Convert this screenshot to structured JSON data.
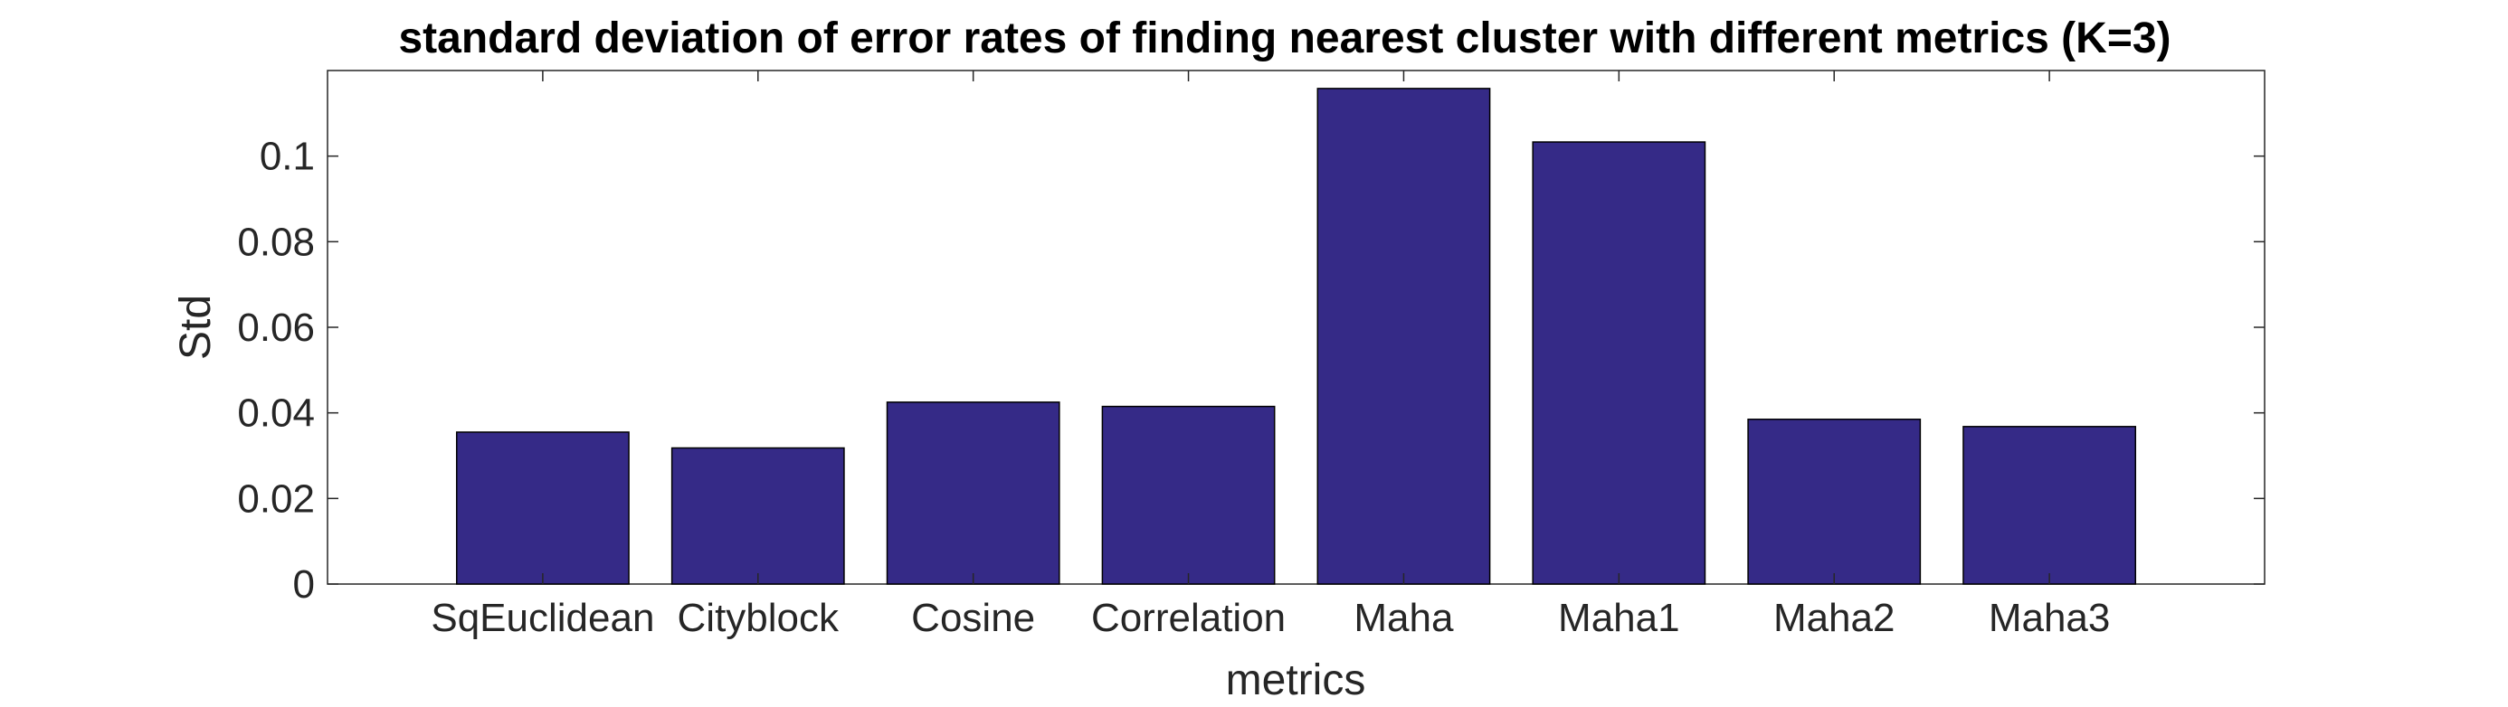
{
  "chart_data": {
    "type": "bar",
    "title": "standard deviation of error rates of finding nearest cluster with different metrics (K=3)",
    "xlabel": "metrics",
    "ylabel": "Std",
    "categories": [
      "SqEuclidean",
      "Cityblock",
      "Cosine",
      "Correlation",
      "Maha",
      "Maha1",
      "Maha2",
      "Maha3"
    ],
    "values": [
      0.0355,
      0.0318,
      0.0425,
      0.0415,
      0.1158,
      0.1033,
      0.0385,
      0.0368
    ],
    "ylim": [
      0,
      0.12
    ],
    "yticks": [
      0,
      0.02,
      0.04,
      0.06,
      0.08,
      0.1
    ],
    "ytick_labels": [
      "0",
      "0.02",
      "0.04",
      "0.06",
      "0.08",
      "0.1"
    ],
    "xlim": [
      0,
      9
    ],
    "grid": false,
    "colors": {
      "bar_fill": "#352a87",
      "bar_edge": "#000000",
      "axis": "#262626"
    }
  }
}
